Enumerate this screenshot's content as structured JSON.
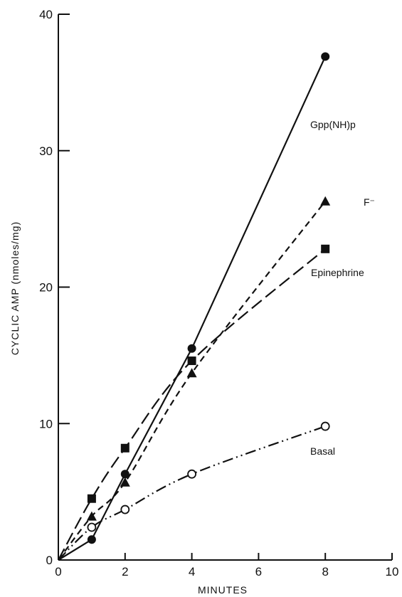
{
  "chart_data": {
    "type": "line",
    "title": "",
    "xlabel": "MINUTES",
    "ylabel": "CYCLIC AMP (nmoles/mg)",
    "xlim": [
      0,
      10
    ],
    "ylim": [
      0,
      40
    ],
    "xticks": [
      0,
      2,
      4,
      6,
      8,
      10
    ],
    "yticks": [
      0,
      10,
      20,
      30,
      40
    ],
    "grid": false,
    "legend": "none",
    "series": [
      {
        "name": "Gpp(NH)p",
        "marker": "filled-circle",
        "line_style": "solid",
        "x": [
          0,
          1,
          2,
          4,
          8
        ],
        "y": [
          0,
          1.5,
          6.3,
          15.5,
          36.9
        ]
      },
      {
        "name": "F⁻",
        "marker": "filled-triangle",
        "line_style": "dashed",
        "x": [
          0,
          1,
          2,
          4,
          8
        ],
        "y": [
          0,
          3.2,
          5.7,
          13.7,
          26.3
        ]
      },
      {
        "name": "Epinephrine",
        "marker": "filled-square",
        "line_style": "long-dash",
        "x": [
          0,
          1,
          2,
          4,
          8
        ],
        "y": [
          0,
          4.5,
          8.2,
          14.6,
          22.8
        ]
      },
      {
        "name": "Basal",
        "marker": "open-circle",
        "line_style": "dash-dot-dot",
        "x": [
          0,
          1,
          2,
          4,
          8
        ],
        "y": [
          0,
          2.4,
          3.7,
          6.3,
          9.8
        ]
      }
    ]
  }
}
